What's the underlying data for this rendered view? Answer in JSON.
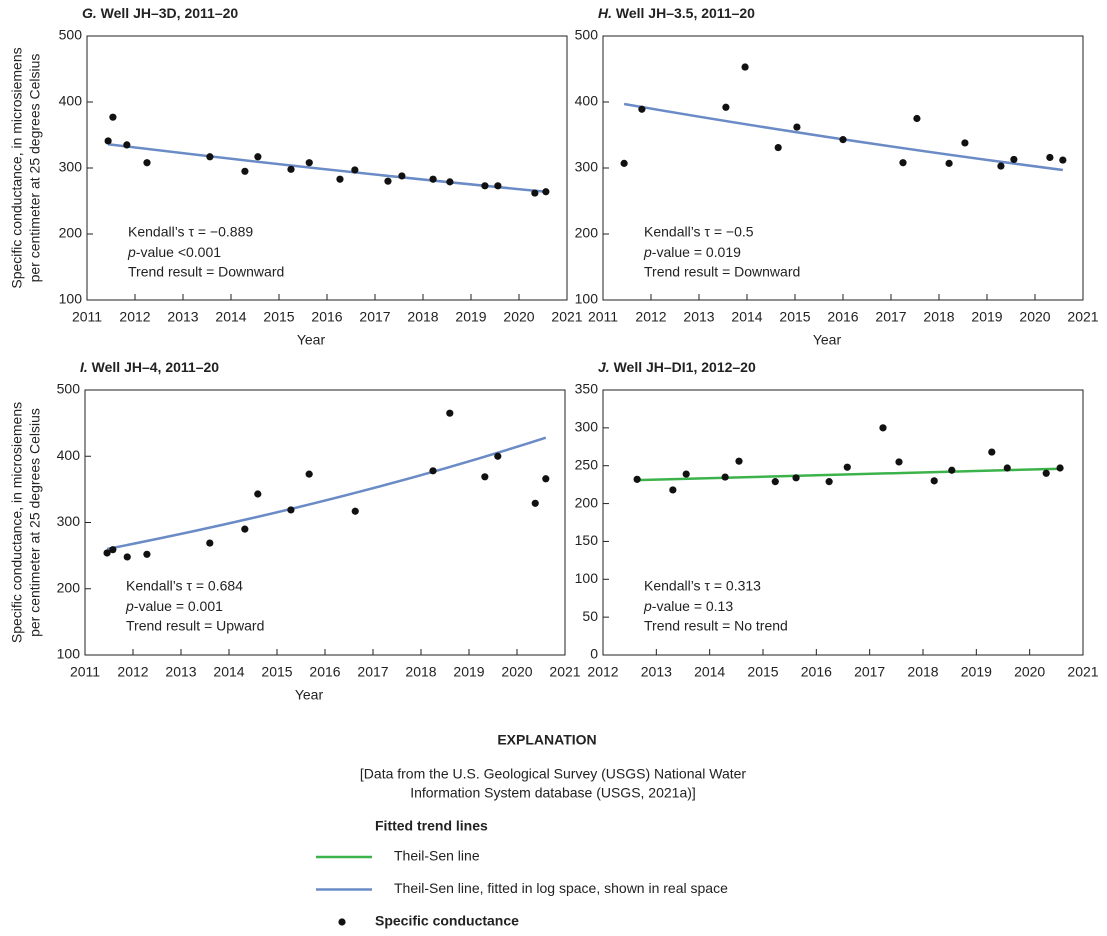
{
  "chart_data": [
    {
      "type": "scatter",
      "panel": "G.",
      "title": "Well JH–3D, 2011–20",
      "ylabel": [
        "Specific conductance, in microsiemens",
        "per centimeter at 25 degrees Celsius"
      ],
      "xlabel": "Year",
      "x": [
        2011.44,
        2011.54,
        2011.83,
        2012.25,
        2013.56,
        2014.29,
        2014.56,
        2015.25,
        2015.63,
        2016.27,
        2016.58,
        2017.27,
        2017.56,
        2018.21,
        2018.56,
        2019.29,
        2019.56,
        2020.33,
        2020.56
      ],
      "y": [
        341,
        377,
        335,
        308,
        317,
        295,
        317,
        298,
        308,
        283,
        297,
        280,
        288,
        283,
        279,
        273,
        273,
        262,
        264
      ],
      "point_color": "#111111",
      "trend": {
        "x": [
          2011.44,
          2020.56
        ],
        "y": [
          336,
          264
        ],
        "color": "#6a8bc6",
        "log": true
      },
      "annotations": [
        "Kendall’s τ = −0.889",
        "p-value <0.001",
        "Trend result = Downward"
      ],
      "xlim": [
        2011,
        2021
      ],
      "xticks": [
        2011,
        2012,
        2013,
        2014,
        2015,
        2016,
        2017,
        2018,
        2019,
        2020,
        2021
      ],
      "ylim": [
        100,
        500
      ],
      "yticks": [
        100,
        200,
        300,
        400,
        500
      ]
    },
    {
      "type": "scatter",
      "panel": "H.",
      "title": "Well JH–3.5, 2011–20",
      "xlabel": "Year",
      "x": [
        2011.44,
        2011.81,
        2013.56,
        2013.96,
        2014.65,
        2015.04,
        2016.0,
        2017.25,
        2017.54,
        2018.21,
        2018.54,
        2019.29,
        2019.56,
        2020.31,
        2020.58
      ],
      "y": [
        307,
        389,
        392,
        453,
        331,
        362,
        343,
        308,
        375,
        307,
        338,
        303,
        313,
        316,
        312
      ],
      "point_color": "#111111",
      "trend": {
        "x": [
          2011.44,
          2020.58
        ],
        "y": [
          397,
          297
        ],
        "color": "#6a8bc6",
        "log": true
      },
      "annotations": [
        "Kendall’s τ = −0.5",
        "p-value = 0.019",
        "Trend result = Downward"
      ],
      "xlim": [
        2011,
        2021
      ],
      "xticks": [
        2011,
        2012,
        2013,
        2014,
        2015,
        2016,
        2017,
        2018,
        2019,
        2020,
        2021
      ],
      "ylim": [
        100,
        500
      ],
      "yticks": [
        100,
        200,
        300,
        400,
        500
      ]
    },
    {
      "type": "scatter",
      "panel": "I.",
      "title": "Well JH–4, 2011–20",
      "ylabel": [
        "Specific conductance, in microsiemens",
        "per centimeter at 25 degrees Celsius"
      ],
      "xlabel": "Year",
      "x": [
        2011.46,
        2011.58,
        2011.88,
        2012.29,
        2013.6,
        2014.33,
        2014.6,
        2015.29,
        2015.67,
        2016.63,
        2018.25,
        2018.6,
        2019.33,
        2019.6,
        2020.38,
        2020.6
      ],
      "y": [
        254,
        259,
        248,
        252,
        269,
        290,
        343,
        319,
        373,
        317,
        378,
        465,
        369,
        400,
        329,
        366
      ],
      "point_color": "#111111",
      "trend": {
        "x": [
          2011.46,
          2020.6
        ],
        "y": [
          260,
          428
        ],
        "color": "#6a8bc6",
        "log": true
      },
      "annotations": [
        "Kendall’s τ = 0.684",
        "p-value = 0.001",
        "Trend result = Upward"
      ],
      "xlim": [
        2011,
        2021
      ],
      "xticks": [
        2011,
        2012,
        2013,
        2014,
        2015,
        2016,
        2017,
        2018,
        2019,
        2020,
        2021
      ],
      "ylim": [
        100,
        500
      ],
      "yticks": [
        100,
        200,
        300,
        400,
        500
      ]
    },
    {
      "type": "scatter",
      "panel": "J.",
      "title": "Well JH–DI1, 2012–20",
      "x": [
        2012.64,
        2013.31,
        2013.56,
        2014.29,
        2014.55,
        2015.23,
        2015.62,
        2016.24,
        2016.58,
        2017.25,
        2017.55,
        2018.21,
        2018.54,
        2019.29,
        2019.58,
        2020.31,
        2020.57
      ],
      "y": [
        232,
        218,
        239,
        235,
        256,
        229,
        234,
        229,
        248,
        300,
        255,
        230,
        244,
        268,
        247,
        240,
        247
      ],
      "point_color": "#111111",
      "trend": {
        "x": [
          2012.64,
          2020.57
        ],
        "y": [
          231,
          246
        ],
        "color": "#3cb34a",
        "log": false
      },
      "annotations": [
        "Kendall’s τ = 0.313",
        "p-value = 0.13",
        "Trend result = No trend"
      ],
      "xlim": [
        2012,
        2021
      ],
      "xticks": [
        2012,
        2013,
        2014,
        2015,
        2016,
        2017,
        2018,
        2019,
        2020,
        2021
      ],
      "ylim": [
        0,
        350
      ],
      "yticks": [
        0,
        50,
        100,
        150,
        200,
        250,
        300,
        350
      ]
    }
  ],
  "explanation": {
    "title": "EXPLANATION",
    "note": [
      "[Data from the U.S. Geological Survey (USGS) National Water",
      "Information System database (USGS, 2021a)]"
    ],
    "legend_title": "Fitted trend lines",
    "items": [
      {
        "label": "Theil-Sen line",
        "color": "#3cb34a"
      },
      {
        "label": "Theil-Sen line, fitted in log space, shown in real space",
        "color": "#6a8bc6"
      },
      {
        "label": "Specific conductance",
        "color": "#111111",
        "marker": "circle"
      }
    ]
  }
}
